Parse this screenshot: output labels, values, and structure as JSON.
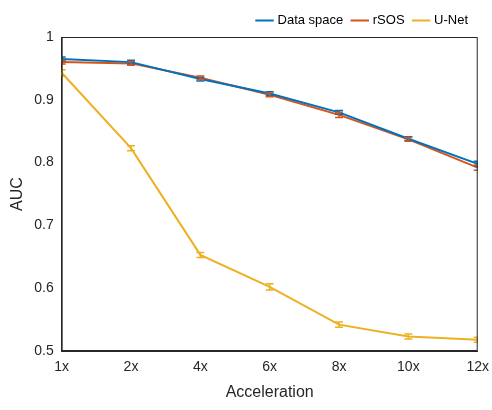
{
  "chart_data": {
    "type": "line",
    "x_label": "Acceleration",
    "y_label": "AUC",
    "categories": [
      "1x",
      "2x",
      "4x",
      "6x",
      "8x",
      "10x",
      "12x"
    ],
    "series": [
      {
        "name": "Data space",
        "color": "#0072bd",
        "line_style": "solid",
        "marker": "none",
        "values": [
          0.965,
          0.96,
          0.933,
          0.91,
          0.88,
          0.838,
          0.798
        ],
        "errors": [
          0.003,
          0.003,
          0.003,
          0.003,
          0.003,
          0.003,
          0.004
        ]
      },
      {
        "name": "rSOS",
        "color": "#d95319",
        "line_style": "solid",
        "marker": "none",
        "values": [
          0.96,
          0.958,
          0.935,
          0.908,
          0.876,
          0.837,
          0.792
        ],
        "errors": [
          0.003,
          0.003,
          0.003,
          0.003,
          0.004,
          0.003,
          0.004
        ]
      },
      {
        "name": "U-Net",
        "color": "#edb120",
        "line_style": "solid",
        "marker": "none",
        "values": [
          0.943,
          0.823,
          0.653,
          0.602,
          0.542,
          0.523,
          0.518
        ],
        "errors": [
          0.005,
          0.004,
          0.004,
          0.005,
          0.004,
          0.004,
          0.004
        ]
      }
    ],
    "ylim": [
      0.5,
      1
    ],
    "yticks": [
      0.5,
      0.6,
      0.7,
      0.8,
      0.9,
      1
    ],
    "grid": false,
    "legend": "upper right"
  }
}
